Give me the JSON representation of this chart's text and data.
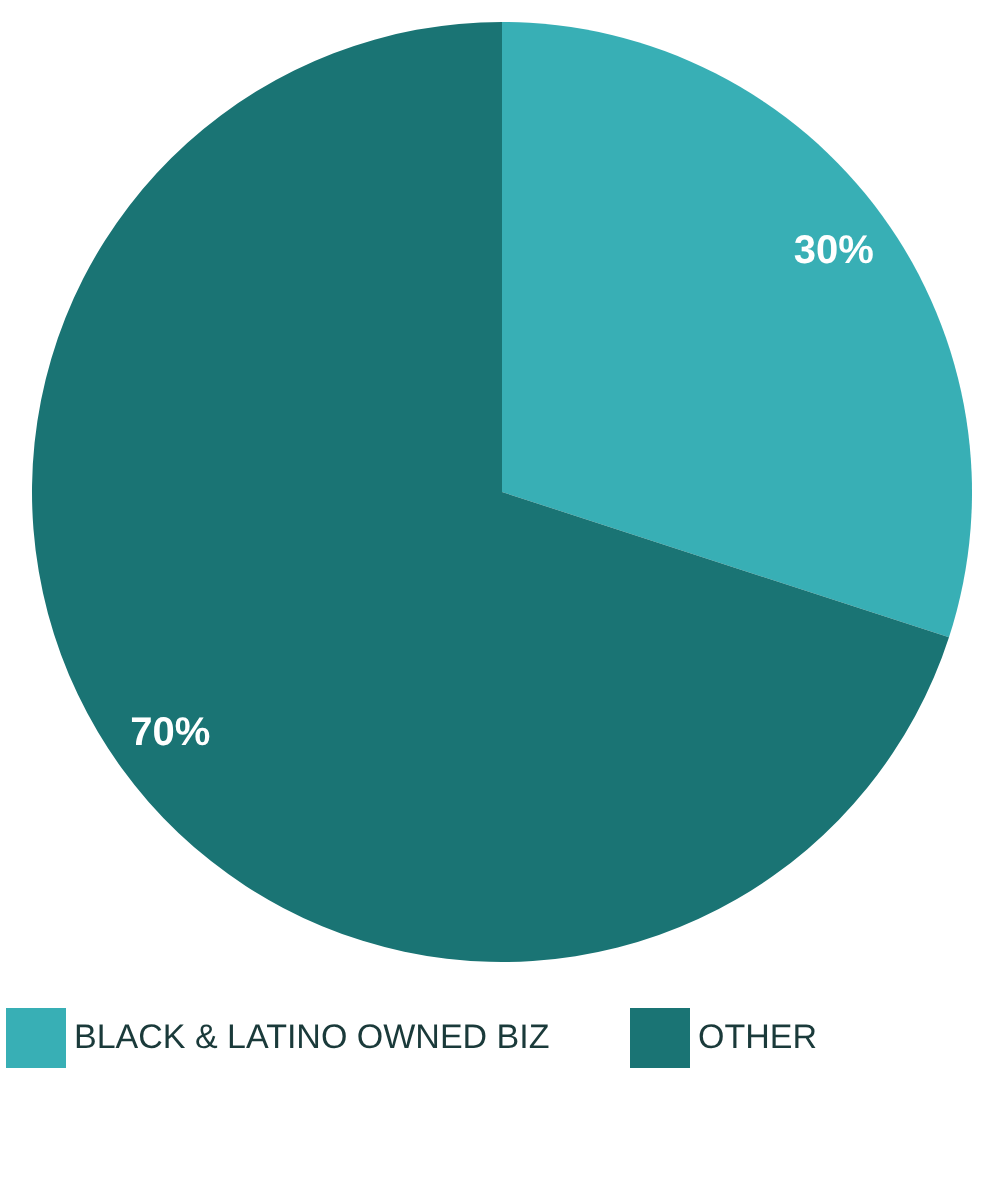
{
  "chart_data": {
    "type": "pie",
    "categories": [
      "BLACK & LATINO OWNED BIZ",
      "OTHER"
    ],
    "values": [
      30,
      70
    ],
    "value_labels": [
      "30%",
      "70%"
    ],
    "colors": [
      "#38afb5",
      "#1a7474"
    ],
    "legend": "bottom"
  }
}
